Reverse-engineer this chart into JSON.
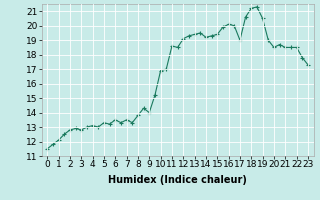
{
  "x": [
    0,
    0.5,
    1,
    1.5,
    2,
    2.5,
    3,
    3.5,
    4,
    4.5,
    5,
    5.5,
    6,
    6.5,
    7,
    7.5,
    8,
    8.5,
    9,
    9.5,
    10,
    10.5,
    11,
    11.5,
    12,
    12.5,
    13,
    13.5,
    14,
    14.5,
    15,
    15.5,
    16,
    16.5,
    17,
    17.5,
    18,
    18.5,
    19,
    19.5,
    20,
    20.5,
    21,
    21.5,
    22,
    22.5,
    23
  ],
  "y": [
    11.5,
    11.8,
    12.1,
    12.5,
    12.8,
    12.9,
    12.8,
    13.0,
    13.1,
    13.0,
    13.3,
    13.2,
    13.5,
    13.3,
    13.5,
    13.3,
    13.8,
    14.3,
    14.0,
    15.2,
    16.9,
    17.0,
    18.6,
    18.5,
    19.1,
    19.3,
    19.4,
    19.5,
    19.2,
    19.3,
    19.4,
    19.9,
    20.1,
    20.0,
    19.0,
    20.6,
    21.2,
    21.3,
    20.5,
    19.0,
    18.5,
    18.7,
    18.5,
    18.5,
    18.5,
    17.8,
    17.3
  ],
  "line_color": "#1a7a5e",
  "marker": "+",
  "marker_size": 3,
  "bg_color": "#c8ebe8",
  "grid_color": "#ffffff",
  "xlabel": "Humidex (Indice chaleur)",
  "xlim": [
    -0.5,
    23.5
  ],
  "ylim": [
    11,
    21.5
  ],
  "yticks": [
    11,
    12,
    13,
    14,
    15,
    16,
    17,
    18,
    19,
    20,
    21
  ],
  "xticks": [
    0,
    1,
    2,
    3,
    4,
    5,
    6,
    7,
    8,
    9,
    10,
    11,
    12,
    13,
    14,
    15,
    16,
    17,
    18,
    19,
    20,
    21,
    22,
    23
  ],
  "xlabel_fontsize": 7,
  "tick_fontsize": 6.5
}
